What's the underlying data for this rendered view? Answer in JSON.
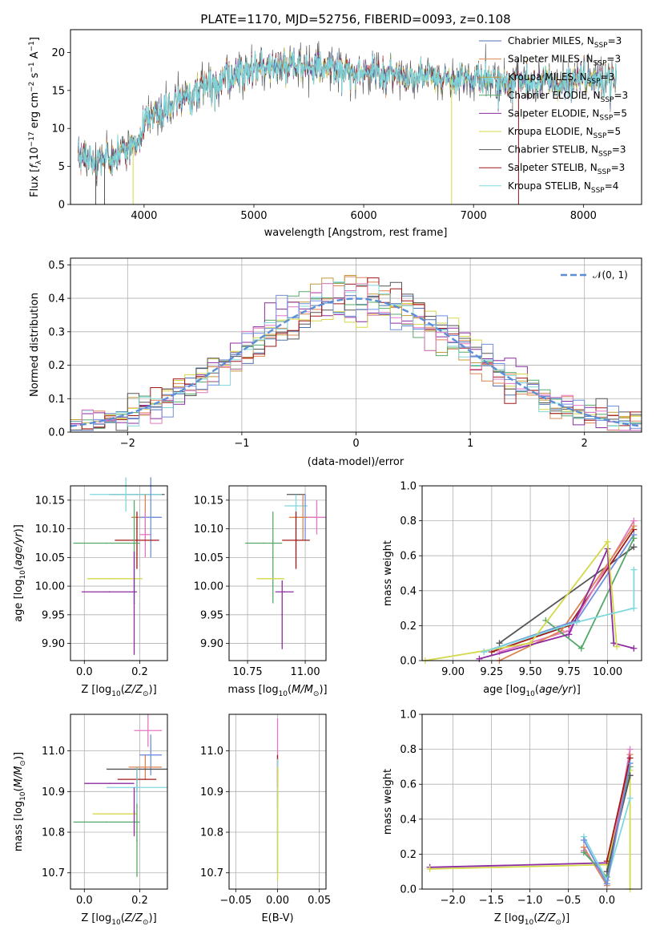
{
  "colors": {
    "chabrier_miles": "#4c72b0",
    "salpeter_miles": "#dd8452",
    "kroupa_miles": "#c49a3a",
    "chabrier_elodie": "#55a868",
    "salpeter_elodie": "#8c2ca0",
    "kroupa_elodie": "#d4d84a",
    "chabrier_stelib": "#555555",
    "salpeter_stelib": "#a01818",
    "kroupa_stelib": "#7fd8dc",
    "norm_curve": "#5b8ed6",
    "pink": "#e377c2",
    "blue2": "#6f8fe0"
  },
  "chart_data": [
    {
      "id": "spectrum",
      "type": "line",
      "title": "PLATE=1170, MJD=52756, FIBERID=0093, z=0.108",
      "xlabel": "wavelength [Angstrom, rest frame]",
      "ylabel": "Flux [f$_\\lambda$10$^{-17}$ erg cm$^{-2}$ s$^{-1}$ A$^{-1}$]",
      "xlim": [
        3330,
        8530
      ],
      "ylim": [
        0,
        23
      ],
      "xticks": [
        4000,
        5000,
        6000,
        7000,
        8000
      ],
      "yticks": [
        0,
        5,
        10,
        15,
        20
      ],
      "grid": false,
      "legend_position": "top-right",
      "legend": [
        {
          "base": "Chabrier MILES, N",
          "sub": "SSP",
          "val": "=3",
          "color_key": "chabrier_miles"
        },
        {
          "base": "Salpeter MILES, N",
          "sub": "SSP",
          "val": "=3",
          "color_key": "salpeter_miles"
        },
        {
          "base": "Kroupa MILES, N",
          "sub": "SSP",
          "val": "=3",
          "color_key": "kroupa_miles"
        },
        {
          "base": "Chabrier ELODIE, N",
          "sub": "SSP",
          "val": "=3",
          "color_key": "chabrier_elodie"
        },
        {
          "base": "Salpeter ELODIE, N",
          "sub": "SSP",
          "val": "=5",
          "color_key": "salpeter_elodie"
        },
        {
          "base": "Kroupa ELODIE, N",
          "sub": "SSP",
          "val": "=5",
          "color_key": "kroupa_elodie"
        },
        {
          "base": "Chabrier STELIB, N",
          "sub": "SSP",
          "val": "=3",
          "color_key": "chabrier_stelib"
        },
        {
          "base": "Salpeter STELIB, N",
          "sub": "SSP",
          "val": "=3",
          "color_key": "salpeter_stelib"
        },
        {
          "base": "Kroupa STELIB, N",
          "sub": "SSP",
          "val": "=4",
          "color_key": "kroupa_stelib"
        }
      ],
      "continuum": [
        [
          3400,
          6.2
        ],
        [
          3600,
          5.8
        ],
        [
          3800,
          7.0
        ],
        [
          3950,
          8.5
        ],
        [
          4000,
          11.0
        ],
        [
          4200,
          12.5
        ],
        [
          4400,
          14.5
        ],
        [
          4600,
          16.0
        ],
        [
          4800,
          17.2
        ],
        [
          5000,
          17.7
        ],
        [
          5200,
          18.2
        ],
        [
          5400,
          18.0
        ],
        [
          5600,
          18.2
        ],
        [
          5800,
          17.8
        ],
        [
          6000,
          17.5
        ],
        [
          6200,
          17.4
        ],
        [
          6400,
          17.0
        ],
        [
          6600,
          16.8
        ],
        [
          6800,
          16.5
        ],
        [
          7000,
          16.5
        ],
        [
          7200,
          16.5
        ],
        [
          7400,
          16.5
        ],
        [
          7600,
          16.0
        ],
        [
          7800,
          16.0
        ],
        [
          8000,
          16.5
        ],
        [
          8300,
          16.3
        ]
      ]
    },
    {
      "id": "residuals",
      "type": "line",
      "xlabel": "(data-model)/error",
      "ylabel": "Normed distribution",
      "xlim": [
        -2.5,
        2.5
      ],
      "ylim": [
        0,
        0.52
      ],
      "xticks": [
        -2,
        -1,
        0,
        1,
        2
      ],
      "yticks": [
        0.0,
        0.1,
        0.2,
        0.3,
        0.4,
        0.5
      ],
      "grid": true,
      "legend_position": "top-right",
      "legend_label": "𝒩(0, 1)",
      "bin_width": 0.1
    },
    {
      "id": "age_vs_Z",
      "type": "scatter",
      "xlabel": "Z [log$_{10}$(Z/Z$_\\odot$)]",
      "ylabel": "age  [log$_{10}$(age/yr)]",
      "xlim": [
        -0.05,
        0.3
      ],
      "ylim": [
        9.87,
        10.175
      ],
      "xticks": [
        0.0,
        0.2
      ],
      "yticks": [
        9.9,
        9.95,
        10.0,
        10.05,
        10.1,
        10.15
      ],
      "grid": true,
      "points": [
        {
          "x": 0.19,
          "y": 10.16,
          "xerr": 0.1,
          "yerr": 0.0,
          "color_key": "chabrier_stelib"
        },
        {
          "x": 0.15,
          "y": 10.16,
          "xerr": 0.13,
          "yerr": 0.03,
          "color_key": "kroupa_stelib"
        },
        {
          "x": 0.22,
          "y": 10.12,
          "xerr": 0.05,
          "yerr": 0.04,
          "color_key": "salpeter_miles"
        },
        {
          "x": 0.24,
          "y": 10.12,
          "xerr": 0.04,
          "yerr": 0.07,
          "color_key": "blue2"
        },
        {
          "x": 0.22,
          "y": 10.09,
          "xerr": 0.02,
          "yerr": 0.04,
          "color_key": "pink"
        },
        {
          "x": 0.19,
          "y": 10.08,
          "xerr": 0.08,
          "yerr": 0.05,
          "color_key": "salpeter_stelib"
        },
        {
          "x": 0.08,
          "y": 10.075,
          "xerr": 0.12,
          "yerr": 0.0,
          "color_key": "chabrier_elodie"
        },
        {
          "x": 0.18,
          "y": 10.06,
          "xerr": 0.0,
          "yerr": 0.09,
          "color_key": "chabrier_elodie"
        },
        {
          "x": 0.11,
          "y": 10.013,
          "xerr": 0.1,
          "yerr": 0.0,
          "color_key": "kroupa_elodie"
        },
        {
          "x": 0.09,
          "y": 9.99,
          "xerr": 0.1,
          "yerr": 0.0,
          "color_key": "salpeter_elodie"
        },
        {
          "x": 0.18,
          "y": 9.97,
          "xerr": 0.0,
          "yerr": 0.09,
          "color_key": "salpeter_elodie"
        }
      ]
    },
    {
      "id": "age_vs_mass",
      "type": "scatter",
      "xlabel": "mass [log$_{10}$(M/M$_\\odot$)]",
      "ylabel": "",
      "xlim": [
        10.67,
        11.09
      ],
      "ylim": [
        9.87,
        10.175
      ],
      "xticks": [
        10.75,
        11.0
      ],
      "yticks": [
        9.9,
        9.95,
        10.0,
        10.05,
        10.1,
        10.15
      ],
      "grid": true,
      "points": [
        {
          "x": 10.96,
          "y": 10.16,
          "xerr": 0.04,
          "yerr": 0.0,
          "color_key": "chabrier_stelib"
        },
        {
          "x": 10.96,
          "y": 10.14,
          "xerr": 0.05,
          "yerr": 0.02,
          "color_key": "kroupa_stelib"
        },
        {
          "x": 11.0,
          "y": 10.12,
          "xerr": 0.04,
          "yerr": 0.04,
          "color_key": "blue2"
        },
        {
          "x": 10.99,
          "y": 10.12,
          "xerr": 0.06,
          "yerr": 0.04,
          "color_key": "salpeter_miles"
        },
        {
          "x": 11.05,
          "y": 10.12,
          "xerr": 0.04,
          "yerr": 0.03,
          "color_key": "pink"
        },
        {
          "x": 10.96,
          "y": 10.08,
          "xerr": 0.06,
          "yerr": 0.05,
          "color_key": "salpeter_stelib"
        },
        {
          "x": 10.82,
          "y": 10.075,
          "xerr": 0.08,
          "yerr": 0.0,
          "color_key": "chabrier_elodie"
        },
        {
          "x": 10.86,
          "y": 10.05,
          "xerr": 0.0,
          "yerr": 0.08,
          "color_key": "chabrier_elodie"
        },
        {
          "x": 10.85,
          "y": 10.013,
          "xerr": 0.06,
          "yerr": 0.0,
          "color_key": "kroupa_elodie"
        },
        {
          "x": 10.91,
          "y": 9.99,
          "xerr": 0.04,
          "yerr": 0.0,
          "color_key": "salpeter_elodie"
        },
        {
          "x": 10.9,
          "y": 9.95,
          "xerr": 0.0,
          "yerr": 0.06,
          "color_key": "salpeter_elodie"
        }
      ]
    },
    {
      "id": "massweight_vs_age",
      "type": "line",
      "xlabel": "age  [log$_{10}$(age/yr)]",
      "ylabel": "mass weight",
      "xlim": [
        8.8,
        10.22
      ],
      "ylim": [
        0,
        1.0
      ],
      "xticks": [
        9.0,
        9.25,
        9.5,
        9.75,
        10.0
      ],
      "yticks": [
        0.0,
        0.2,
        0.4,
        0.6,
        0.8,
        1.0
      ],
      "grid": true,
      "series": [
        {
          "color_key": "chabrier_stelib",
          "points": [
            [
              9.3,
              0.1
            ],
            [
              10.17,
              0.65
            ]
          ]
        },
        {
          "color_key": "salpeter_stelib",
          "points": [
            [
              9.25,
              0.05
            ],
            [
              9.75,
              0.2
            ],
            [
              10.17,
              0.75
            ]
          ]
        },
        {
          "color_key": "pink",
          "points": [
            [
              9.3,
              0.05
            ],
            [
              9.75,
              0.17
            ],
            [
              10.17,
              0.8
            ]
          ]
        },
        {
          "color_key": "salpeter_miles",
          "points": [
            [
              9.3,
              0.0
            ],
            [
              9.7,
              0.17
            ],
            [
              10.17,
              0.77
            ]
          ]
        },
        {
          "color_key": "blue2",
          "points": [
            [
              9.2,
              0.05
            ],
            [
              9.8,
              0.23
            ],
            [
              10.17,
              0.72
            ]
          ]
        },
        {
          "color_key": "chabrier_elodie",
          "points": [
            [
              9.6,
              0.23
            ],
            [
              9.83,
              0.07
            ],
            [
              10.17,
              0.7
            ]
          ]
        },
        {
          "color_key": "salpeter_elodie",
          "points": [
            [
              9.17,
              0.01
            ],
            [
              9.75,
              0.15
            ],
            [
              10.0,
              0.64
            ],
            [
              10.04,
              0.1
            ],
            [
              10.17,
              0.07
            ]
          ]
        },
        {
          "color_key": "kroupa_elodie",
          "points": [
            [
              8.82,
              0.0
            ],
            [
              9.5,
              0.1
            ],
            [
              10.0,
              0.68
            ],
            [
              10.06,
              0.08
            ]
          ]
        },
        {
          "color_key": "kroupa_stelib",
          "points": [
            [
              9.2,
              0.05
            ],
            [
              9.8,
              0.22
            ],
            [
              10.17,
              0.3
            ],
            [
              10.17,
              0.52
            ]
          ]
        }
      ]
    },
    {
      "id": "mass_vs_Z",
      "type": "scatter",
      "xlabel": "Z [log$_{10}$(Z/Z$_\\odot$)]",
      "ylabel": "mass [log$_{10}$(M/M$_\\odot$)]",
      "xlim": [
        -0.05,
        0.3
      ],
      "ylim": [
        10.66,
        11.09
      ],
      "xticks": [
        0.0,
        0.2
      ],
      "yticks": [
        10.7,
        10.8,
        10.9,
        11.0
      ],
      "grid": true,
      "points": [
        {
          "x": 0.23,
          "y": 11.05,
          "xerr": 0.05,
          "yerr": 0.04,
          "color_key": "pink"
        },
        {
          "x": 0.24,
          "y": 10.99,
          "xerr": 0.04,
          "yerr": 0.05,
          "color_key": "blue2"
        },
        {
          "x": 0.22,
          "y": 10.96,
          "xerr": 0.06,
          "yerr": 0.03,
          "color_key": "salpeter_miles"
        },
        {
          "x": 0.19,
          "y": 10.955,
          "xerr": 0.11,
          "yerr": 0.0,
          "color_key": "chabrier_stelib"
        },
        {
          "x": 0.19,
          "y": 10.93,
          "xerr": 0.07,
          "yerr": 0.03,
          "color_key": "salpeter_stelib"
        },
        {
          "x": 0.09,
          "y": 10.92,
          "xerr": 0.09,
          "yerr": 0.0,
          "color_key": "salpeter_elodie"
        },
        {
          "x": 0.19,
          "y": 10.91,
          "xerr": 0.11,
          "yerr": 0.05,
          "color_key": "kroupa_stelib"
        },
        {
          "x": 0.11,
          "y": 10.845,
          "xerr": 0.08,
          "yerr": 0.0,
          "color_key": "kroupa_elodie"
        },
        {
          "x": 0.08,
          "y": 10.825,
          "xerr": 0.12,
          "yerr": 0.0,
          "color_key": "chabrier_elodie"
        },
        {
          "x": 0.19,
          "y": 10.78,
          "xerr": 0.0,
          "yerr": 0.09,
          "color_key": "chabrier_elodie"
        },
        {
          "x": 0.18,
          "y": 10.85,
          "xerr": 0.0,
          "yerr": 0.06,
          "color_key": "salpeter_elodie"
        }
      ]
    },
    {
      "id": "mass_vs_EBV",
      "type": "scatter",
      "xlabel": "E(B-V)",
      "ylabel": "",
      "xlim": [
        -0.058,
        0.058
      ],
      "ylim": [
        10.66,
        11.09
      ],
      "xticks": [
        -0.05,
        0.0,
        0.05
      ],
      "yticks": [
        10.7,
        10.8,
        10.9,
        11.0
      ],
      "grid": true,
      "points": [
        {
          "x": 0.0,
          "y": 10.98,
          "xerr": 0.0,
          "yerr": 0.1,
          "color_key": "pink"
        },
        {
          "x": 0.0,
          "y": 10.95,
          "xerr": 0.0,
          "yerr": 0.04,
          "color_key": "salpeter_stelib"
        },
        {
          "x": 0.0,
          "y": 10.92,
          "xerr": 0.0,
          "yerr": 0.06,
          "color_key": "kroupa_stelib"
        },
        {
          "x": 0.0,
          "y": 10.8,
          "xerr": 0.0,
          "yerr": 0.1,
          "color_key": "chabrier_elodie"
        },
        {
          "x": 0.0,
          "y": 10.82,
          "xerr": 0.0,
          "yerr": 0.14,
          "color_key": "kroupa_elodie"
        }
      ]
    },
    {
      "id": "massweight_vs_Z",
      "type": "line",
      "xlabel": "Z [log$_{10}$(Z/Z$_\\odot$)]",
      "ylabel": "mass weight",
      "xlim": [
        -2.4,
        0.45
      ],
      "ylim": [
        0,
        1.0
      ],
      "xticks": [
        -2.0,
        -1.5,
        -1.0,
        -0.5,
        0.0
      ],
      "yticks": [
        0.0,
        0.2,
        0.4,
        0.6,
        0.8,
        1.0
      ],
      "grid": true,
      "series": [
        {
          "color_key": "salpeter_elodie",
          "points": [
            [
              -2.3,
              0.125
            ],
            [
              0.0,
              0.15
            ],
            [
              0.3,
              0.65
            ]
          ]
        },
        {
          "color_key": "kroupa_elodie",
          "points": [
            [
              -2.3,
              0.115
            ],
            [
              0.0,
              0.14
            ],
            [
              0.3,
              0.68
            ],
            [
              0.3,
              0.0
            ]
          ]
        },
        {
          "color_key": "salpeter_miles",
          "points": [
            [
              -0.3,
              0.24
            ],
            [
              0.0,
              0.02
            ],
            [
              0.3,
              0.77
            ]
          ]
        },
        {
          "color_key": "pink",
          "points": [
            [
              -0.3,
              0.22
            ],
            [
              0.0,
              0.05
            ],
            [
              0.3,
              0.8
            ]
          ]
        },
        {
          "color_key": "chabrier_elodie",
          "points": [
            [
              -0.3,
              0.21
            ],
            [
              0.0,
              0.07
            ],
            [
              0.3,
              0.7
            ]
          ]
        },
        {
          "color_key": "salpeter_stelib",
          "points": [
            [
              0.0,
              0.16
            ],
            [
              0.3,
              0.75
            ]
          ]
        },
        {
          "color_key": "chabrier_stelib",
          "points": [
            [
              0.0,
              0.1
            ],
            [
              0.3,
              0.65
            ]
          ]
        },
        {
          "color_key": "kroupa_stelib",
          "points": [
            [
              -0.3,
              0.3
            ],
            [
              0.0,
              0.05
            ],
            [
              0.3,
              0.52
            ]
          ]
        },
        {
          "color_key": "blue2",
          "points": [
            [
              -0.3,
              0.28
            ],
            [
              0.0,
              0.03
            ],
            [
              0.3,
              0.72
            ]
          ]
        }
      ]
    }
  ]
}
